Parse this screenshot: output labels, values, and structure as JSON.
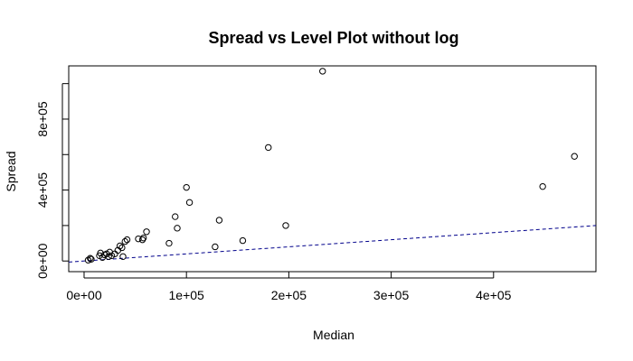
{
  "chart_data": {
    "type": "scatter",
    "title": "Spread vs Level Plot without log",
    "xlabel": "Median",
    "ylabel": "Spread",
    "xlim": [
      -15000,
      500000
    ],
    "ylim": [
      -60000,
      1100000
    ],
    "x_ticks": [
      0,
      100000,
      200000,
      300000,
      400000
    ],
    "x_tick_labels": [
      "0e+00",
      "1e+05",
      "2e+05",
      "3e+05",
      "4e+05"
    ],
    "y_ticks": [
      0,
      400000,
      800000
    ],
    "y_tick_labels": [
      "0e+00",
      "4e+05",
      "8e+05"
    ],
    "y_minor_ticks": [
      200000,
      600000,
      1000000
    ],
    "grid": false,
    "legend": "none",
    "points": [
      {
        "x": 4000,
        "y": 5000
      },
      {
        "x": 6000,
        "y": 15000
      },
      {
        "x": 7000,
        "y": 10000
      },
      {
        "x": 15000,
        "y": 30000
      },
      {
        "x": 16000,
        "y": 45000
      },
      {
        "x": 18000,
        "y": 20000
      },
      {
        "x": 20000,
        "y": 35000
      },
      {
        "x": 22000,
        "y": 40000
      },
      {
        "x": 24000,
        "y": 25000
      },
      {
        "x": 25000,
        "y": 50000
      },
      {
        "x": 27000,
        "y": 30000
      },
      {
        "x": 30000,
        "y": 40000
      },
      {
        "x": 33000,
        "y": 60000
      },
      {
        "x": 35000,
        "y": 85000
      },
      {
        "x": 37000,
        "y": 75000
      },
      {
        "x": 38000,
        "y": 25000
      },
      {
        "x": 40000,
        "y": 110000
      },
      {
        "x": 42000,
        "y": 120000
      },
      {
        "x": 53000,
        "y": 125000
      },
      {
        "x": 57000,
        "y": 120000
      },
      {
        "x": 58000,
        "y": 130000
      },
      {
        "x": 61000,
        "y": 165000
      },
      {
        "x": 83000,
        "y": 100000
      },
      {
        "x": 89000,
        "y": 250000
      },
      {
        "x": 91000,
        "y": 185000
      },
      {
        "x": 100000,
        "y": 415000
      },
      {
        "x": 103000,
        "y": 330000
      },
      {
        "x": 128000,
        "y": 80000
      },
      {
        "x": 132000,
        "y": 230000
      },
      {
        "x": 155000,
        "y": 115000
      },
      {
        "x": 180000,
        "y": 640000
      },
      {
        "x": 197000,
        "y": 200000
      },
      {
        "x": 233000,
        "y": 1070000
      },
      {
        "x": 448000,
        "y": 420000
      },
      {
        "x": 479000,
        "y": 590000
      }
    ],
    "reference_line": {
      "style": "dashed",
      "color": "#00008b",
      "intercept": 0,
      "slope": 0.4
    }
  }
}
